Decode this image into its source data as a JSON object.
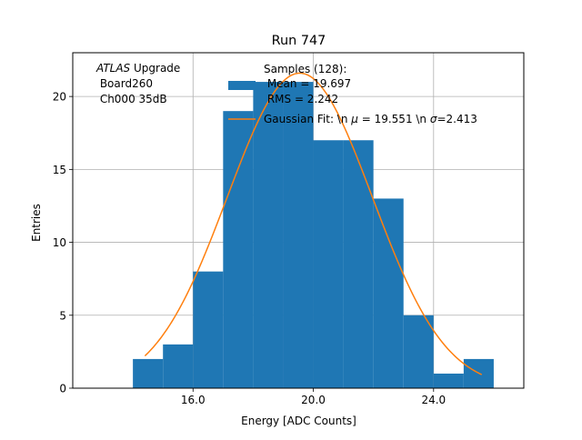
{
  "chart_data": {
    "type": "bar",
    "title": "Run 747",
    "xlabel": "Energy [ADC Counts]",
    "ylabel": "Entries",
    "xlim": [
      12.0,
      27.0
    ],
    "ylim": [
      0,
      23.0
    ],
    "grid": true,
    "bins": [
      {
        "x0": 14.0,
        "x1": 15.0,
        "count": 2
      },
      {
        "x0": 15.0,
        "x1": 16.0,
        "count": 3
      },
      {
        "x0": 16.0,
        "x1": 17.0,
        "count": 8
      },
      {
        "x0": 17.0,
        "x1": 18.0,
        "count": 19
      },
      {
        "x0": 18.0,
        "x1": 19.0,
        "count": 21
      },
      {
        "x0": 19.0,
        "x1": 20.0,
        "count": 21
      },
      {
        "x0": 20.0,
        "x1": 21.0,
        "count": 17
      },
      {
        "x0": 21.0,
        "x1": 22.0,
        "count": 17
      },
      {
        "x0": 22.0,
        "x1": 23.0,
        "count": 13
      },
      {
        "x0": 23.0,
        "x1": 24.0,
        "count": 5
      },
      {
        "x0": 24.0,
        "x1": 25.0,
        "count": 1
      },
      {
        "x0": 25.0,
        "x1": 26.0,
        "count": 2
      }
    ],
    "fit": {
      "type": "gaussian",
      "amplitude": 21.6,
      "mu": 19.551,
      "sigma": 2.413,
      "x_range": [
        14.4,
        25.6
      ]
    },
    "xticks": [
      {
        "value": 16.0,
        "label": "16.0"
      },
      {
        "value": 20.0,
        "label": "20.0"
      },
      {
        "value": 24.0,
        "label": "24.0"
      }
    ],
    "yticks": [
      {
        "value": 0,
        "label": "0"
      },
      {
        "value": 5,
        "label": "5"
      },
      {
        "value": 10,
        "label": "10"
      },
      {
        "value": 15,
        "label": "15"
      },
      {
        "value": 20,
        "label": "20"
      }
    ],
    "colors": {
      "bars": "#1f77b4",
      "fit": "#ff7f0e",
      "grid": "#b0b0b0",
      "axes": "#000000"
    },
    "annotation": {
      "atlas": "ATLAS",
      "upgrade": " Upgrade",
      "line2": " Board260",
      "line3": " Ch000 35dB"
    },
    "legend": {
      "location": "upper-right",
      "hist_label_lines": [
        "Samples (128):",
        " Mean = 19.697",
        " RMS = 2.242"
      ],
      "fit_label_parts": [
        "Gaussian Fit: \\n ",
        "μ",
        " = 19.551 \\n ",
        "σ",
        "=2.413"
      ]
    }
  }
}
